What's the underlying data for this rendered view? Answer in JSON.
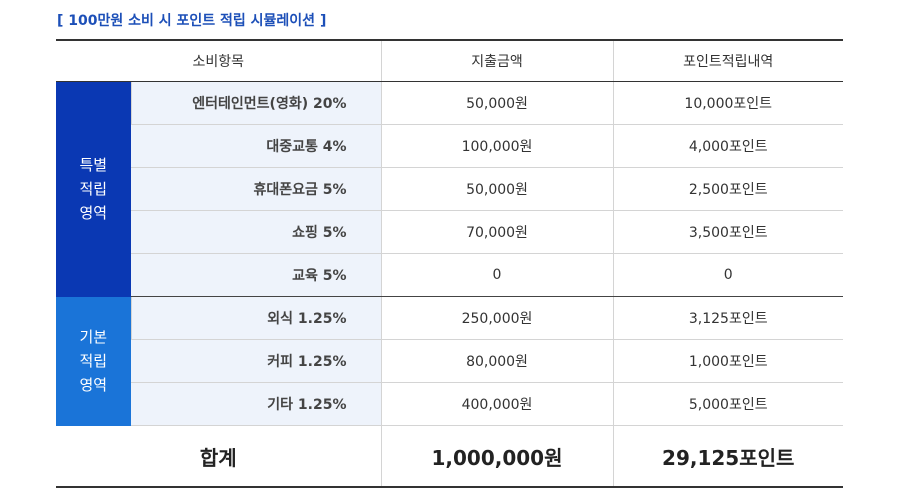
{
  "title": "[ 100만원 소비 시 포인트 적립 시뮬레이션 ]",
  "header": [
    "소비항목",
    "지출금액",
    "포인트적립내역"
  ],
  "groups": [
    {
      "label": [
        "특별",
        "적립",
        "영역"
      ],
      "rows": [
        [
          "엔터테인먼트(영화) 20%",
          "50,000원",
          "10,000포인트"
        ],
        [
          "대중교통 4%",
          "100,000원",
          "4,000포인트"
        ],
        [
          "휴대폰요금 5%",
          "50,000원",
          "2,500포인트"
        ],
        [
          "쇼핑 5%",
          "70,000원",
          "3,500포인트"
        ],
        [
          "교육 5%",
          "0",
          "0"
        ]
      ]
    },
    {
      "label": [
        "기본",
        "적립",
        "영역"
      ],
      "rows": [
        [
          "외식 1.25%",
          "250,000원",
          "3,125포인트"
        ],
        [
          "커피 1.25%",
          "80,000원",
          "1,000포인트"
        ],
        [
          "기타 1.25%",
          "400,000원",
          "5,000포인트"
        ]
      ]
    }
  ],
  "total": [
    "합계",
    "1,000,000원",
    "29,125포인트"
  ]
}
